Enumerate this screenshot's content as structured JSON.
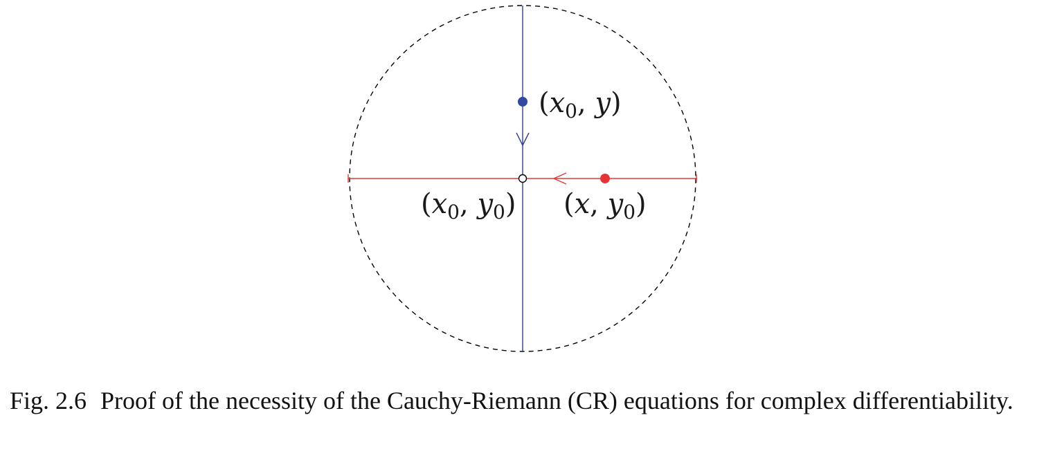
{
  "diagram": {
    "colors": {
      "circle": "#000000",
      "vertical_path": "#2f3f8f",
      "horizontal_path": "#e03a36",
      "moving_point_vertical": "#2f4aa0",
      "moving_point_horizontal": "#e63434",
      "center_point_fill": "#ffffff"
    },
    "labels": {
      "top_point": {
        "open": "(",
        "x": "x",
        "x_sub": "0",
        "comma": ", ",
        "y": "y",
        "y_sub": "",
        "close": ")"
      },
      "center_point": {
        "open": "(",
        "x": "x",
        "x_sub": "0",
        "comma": ", ",
        "y": "y",
        "y_sub": "0",
        "close": ")"
      },
      "right_point": {
        "open": "(",
        "x": "x",
        "x_sub": "",
        "comma": ", ",
        "y": "y",
        "y_sub": "0",
        "close": ")"
      }
    }
  },
  "caption": {
    "number": "Fig. 2.6",
    "text": "Proof of the necessity of the Cauchy-Riemann (CR) equations for complex differentiability."
  }
}
